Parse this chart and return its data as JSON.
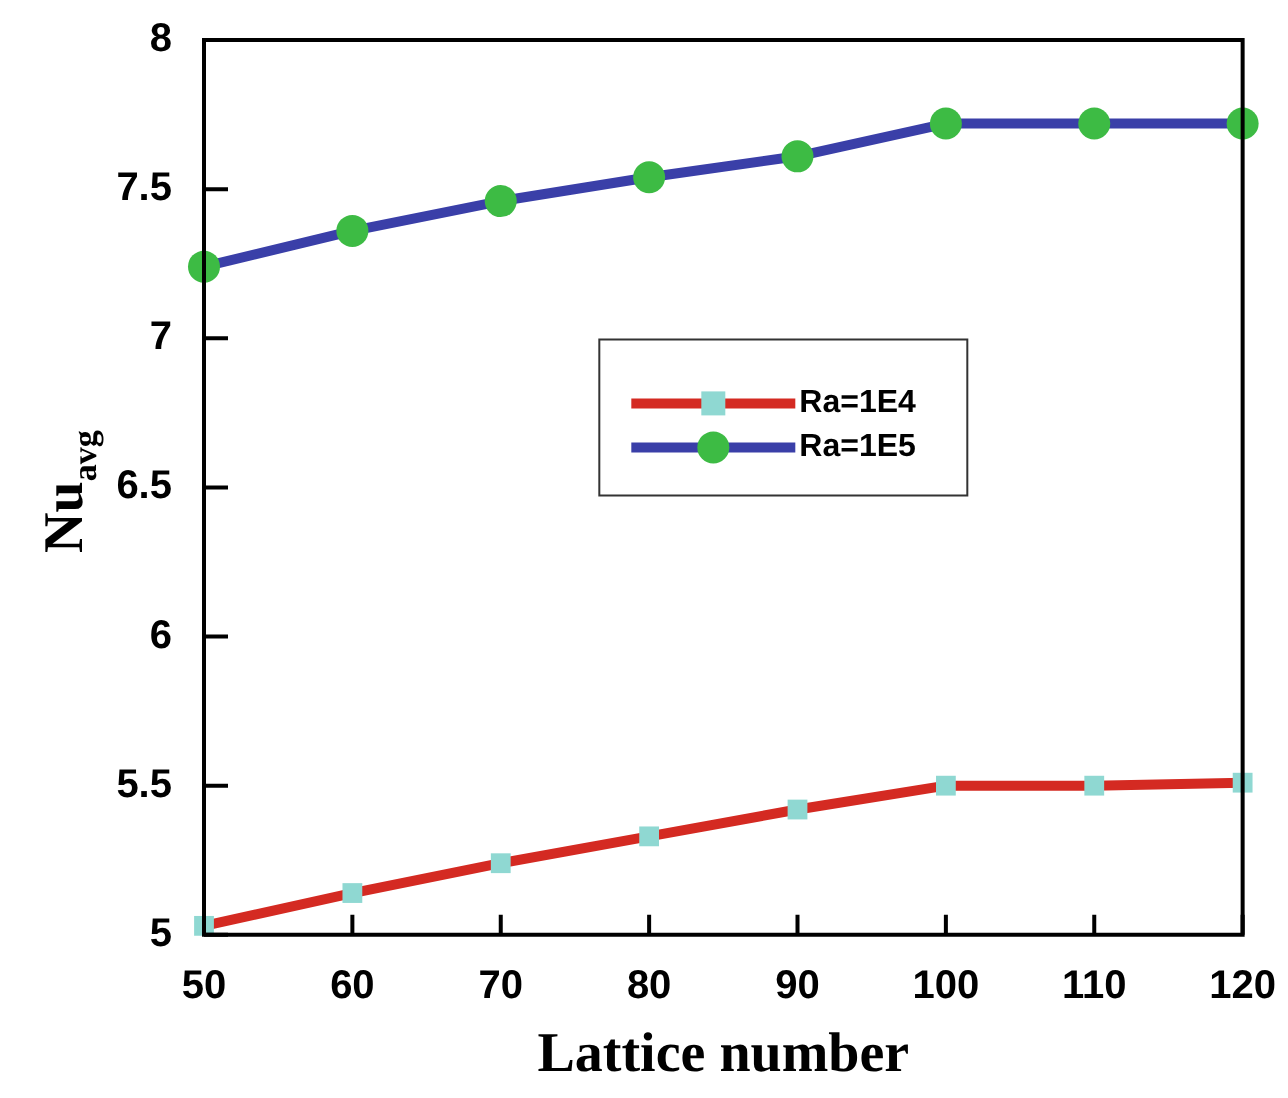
{
  "chart_data": {
    "type": "line",
    "xlabel": "Lattice number",
    "ylabel": "Nu$_{avg}$",
    "x": [
      50,
      60,
      70,
      80,
      90,
      100,
      110,
      120
    ],
    "series": [
      {
        "name": "Ra=1E4",
        "color": "#d42a22",
        "colors": [
          "#8fd8d2",
          "#8fd8d2",
          "#8fd8d2",
          "#8fd8d2",
          "#8fd8d2",
          "#8fd8d2",
          "#8fd8d2",
          "#8fd8d2"
        ],
        "marker": "square",
        "values": [
          5.03,
          5.14,
          5.24,
          5.33,
          5.42,
          5.5,
          5.5,
          5.51
        ]
      },
      {
        "name": "Ra=1E5",
        "color": "#3a3fa8",
        "colors": [
          "#3dbb44",
          "#3dbb44",
          "#3dbb44",
          "#3dbb44",
          "#3dbb44",
          "#3dbb44",
          "#3dbb44",
          "#3dbb44"
        ],
        "marker": "circle",
        "values": [
          7.24,
          7.36,
          7.46,
          7.54,
          7.61,
          7.72,
          7.72,
          7.72
        ]
      }
    ],
    "xlim": [
      50,
      120
    ],
    "xticks": [
      50,
      60,
      70,
      80,
      90,
      100,
      110,
      120
    ],
    "ylim": [
      5,
      8
    ],
    "yticks": [
      5,
      5.5,
      6,
      6.5,
      7,
      7.5,
      8
    ],
    "grid": false,
    "legend": "center",
    "line_style": "solid"
  }
}
